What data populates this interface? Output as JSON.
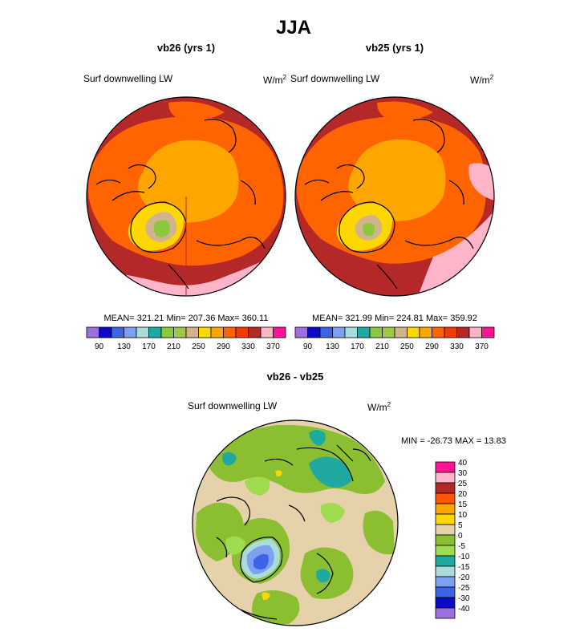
{
  "chart_data": {
    "type": "heatmap",
    "title": "JJA",
    "panels": [
      {
        "id": "p1",
        "subtitle": "vb26 (yrs 1)",
        "left_label": "Surf downwelling LW",
        "unit_base": "W/m",
        "unit_exp": "2",
        "stats": "MEAN= 321.21  Min= 207.36  Max= 360.11",
        "colorbar_labels": [
          "90",
          "130",
          "170",
          "210",
          "250",
          "290",
          "330",
          "370"
        ]
      },
      {
        "id": "p2",
        "subtitle": "vb25 (yrs 1)",
        "left_label": "Surf downwelling LW",
        "unit_base": "W/m",
        "unit_exp": "2",
        "stats": "MEAN= 321.99  Min= 224.81  Max= 359.92",
        "colorbar_labels": [
          "90",
          "130",
          "170",
          "210",
          "250",
          "290",
          "330",
          "370"
        ]
      },
      {
        "id": "p3",
        "subtitle": "vb26 - vb25",
        "left_label": "Surf downwelling LW",
        "unit_base": "W/m",
        "unit_exp": "2",
        "stats": "MIN = -26.73 MAX =  13.83",
        "colorbar_labels": [
          "40",
          "30",
          "25",
          "20",
          "15",
          "10",
          "5",
          "0",
          "-5",
          "-10",
          "-15",
          "-20",
          "-25",
          "-30",
          "-40"
        ]
      }
    ],
    "abs_colors": [
      "#9b6fde",
      "#0a0ac8",
      "#3c64e6",
      "#7da0f0",
      "#aadcdc",
      "#1eaaa0",
      "#8cc83c",
      "#a0c846",
      "#d2b48c",
      "#ffd700",
      "#ffa500",
      "#ff6400",
      "#f03c00",
      "#b42828",
      "#ffb4c8",
      "#ff1493"
    ],
    "diff_colors": [
      "#ff1493",
      "#ffb4c8",
      "#b42828",
      "#ff5500",
      "#ffa500",
      "#ffd700",
      "#e6d2aa",
      "#8cbe32",
      "#a0dc50",
      "#1eaaa0",
      "#aadcdc",
      "#7da0f0",
      "#3c64e6",
      "#0a0ac8",
      "#9b6fde"
    ]
  }
}
